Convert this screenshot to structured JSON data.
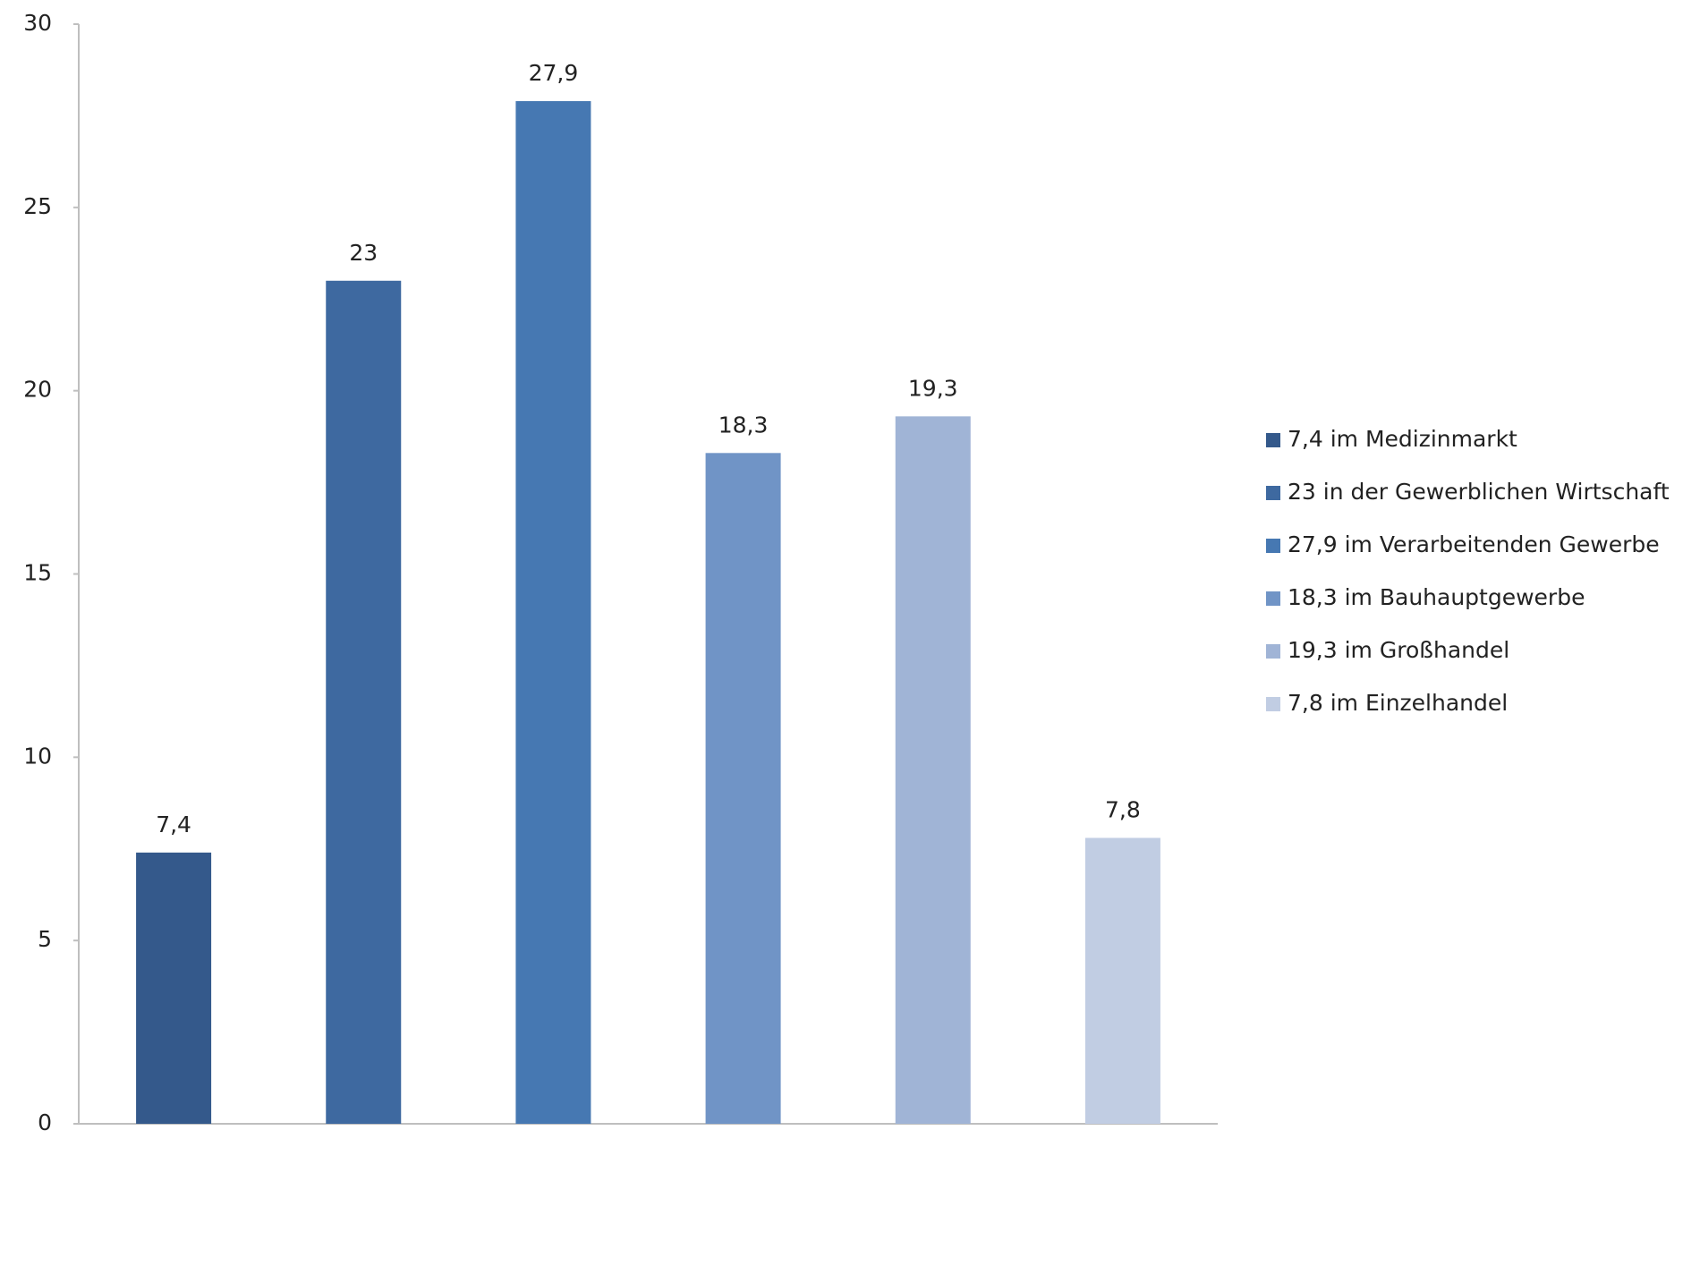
{
  "chart_data": {
    "type": "bar",
    "categories": [
      null,
      null,
      null,
      null,
      null,
      null
    ],
    "series": [
      {
        "name": "7,4 im Medizinmarkt",
        "color": "#34598b",
        "values": [
          7.4,
          null,
          null,
          null,
          null,
          null
        ],
        "value_labels": [
          "7,4",
          null,
          null,
          null,
          null,
          null
        ]
      },
      {
        "name": "23 in der Gewerblichen Wirtschaft",
        "color": "#3e69a0",
        "values": [
          null,
          23,
          null,
          null,
          null,
          null
        ]
      },
      {
        "name": "27,9 im Verarbeitenden Gewerbe",
        "color": "#4678b2",
        "values": [
          null,
          null,
          27.9,
          null,
          null,
          null
        ],
        "value_labels": [
          null,
          null,
          "27,9",
          null,
          null,
          null
        ]
      },
      {
        "name": "18,3 im Bauhauptgewerbe",
        "color": "#7094c6",
        "values": [
          null,
          null,
          null,
          18.3,
          null,
          null
        ],
        "value_labels": [
          null,
          null,
          null,
          "18,3",
          null,
          null
        ]
      },
      {
        "name": "19,3 im Großhandel",
        "color": "#a0b4d6",
        "values": [
          null,
          null,
          null,
          null,
          19.3,
          null
        ],
        "value_labels": [
          null,
          null,
          null,
          null,
          "19,3",
          null
        ]
      },
      {
        "name": "7,8 im Einzelhandel",
        "color": "#c1cde3",
        "values": [
          null,
          null,
          null,
          null,
          null,
          7.8
        ],
        "value_labels": [
          null,
          null,
          null,
          null,
          null,
          "7,8"
        ]
      }
    ],
    "ylim": [
      0,
      30
    ],
    "yticks": [
      0,
      5,
      10,
      15,
      20,
      25,
      30
    ],
    "grid": false,
    "legend": "right"
  }
}
